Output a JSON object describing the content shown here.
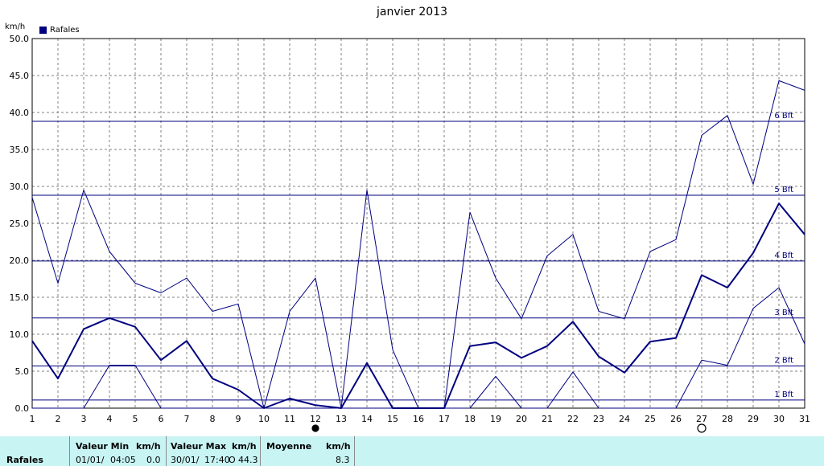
{
  "chart_data": {
    "type": "line",
    "title": "janvier 2013",
    "ylabel": "km/h",
    "ylim": [
      0,
      50
    ],
    "yticks": [
      "0.0",
      "5.0",
      "10.0",
      "15.0",
      "20.0",
      "25.0",
      "30.0",
      "35.0",
      "40.0",
      "45.0",
      "50.0"
    ],
    "x": [
      1,
      2,
      3,
      4,
      5,
      6,
      7,
      8,
      9,
      10,
      11,
      12,
      13,
      14,
      15,
      16,
      17,
      18,
      19,
      20,
      21,
      22,
      23,
      24,
      25,
      26,
      27,
      28,
      29,
      30,
      31
    ],
    "legend": [
      "Rafales"
    ],
    "grid": true,
    "series": [
      {
        "name": "Rafales",
        "role": "max",
        "values": [
          28.5,
          16.9,
          29.5,
          21.2,
          16.9,
          15.6,
          17.6,
          13.1,
          14.1,
          0.0,
          13.1,
          17.6,
          0.0,
          29.5,
          7.9,
          0.0,
          0.0,
          26.5,
          17.6,
          12.1,
          20.6,
          23.5,
          13.1,
          12.1,
          21.2,
          22.8,
          36.9,
          39.6,
          30.3,
          44.3,
          43.0
        ]
      },
      {
        "name": "Rafales",
        "role": "mean",
        "values": [
          9.1,
          4.0,
          10.7,
          12.2,
          11.0,
          6.5,
          9.1,
          4.0,
          2.5,
          0.0,
          1.3,
          0.4,
          0.0,
          6.1,
          0.0,
          0.0,
          0.0,
          8.4,
          8.9,
          6.8,
          8.4,
          11.7,
          7.0,
          4.8,
          9.0,
          9.5,
          18.0,
          16.3,
          21.0,
          27.7,
          23.5
        ]
      },
      {
        "name": "Rafales",
        "role": "min",
        "values": [
          0.0,
          0.0,
          0.0,
          5.8,
          5.8,
          0.0,
          0.0,
          0.0,
          0.0,
          0.0,
          0.0,
          0.0,
          0.0,
          0.0,
          0.0,
          0.0,
          0.0,
          0.0,
          4.3,
          0.0,
          0.0,
          4.9,
          0.0,
          0.0,
          0.0,
          0.0,
          6.5,
          5.8,
          13.5,
          16.3,
          8.7
        ]
      }
    ],
    "reference_lines": [
      {
        "label": "1 Bft",
        "value": 1.1
      },
      {
        "label": "2 Bft",
        "value": 5.7
      },
      {
        "label": "3 Bft",
        "value": 12.2
      },
      {
        "label": "4 Bft",
        "value": 19.9
      },
      {
        "label": "5 Bft",
        "value": 28.8
      },
      {
        "label": "6 Bft",
        "value": 38.8
      }
    ],
    "moon_markers": [
      {
        "day": 12,
        "phase": "new-moon"
      },
      {
        "day": 27,
        "phase": "full-moon"
      }
    ],
    "colors": {
      "line": "#000080",
      "grid": "#808080"
    }
  },
  "stats": {
    "row_label": "Rafales",
    "min_header": "Valeur Min",
    "min_unit": "km/h",
    "min_date": "01/01/",
    "min_time": "04:05",
    "min_value": "0.0",
    "max_header": "Valeur Max",
    "max_unit": "km/h",
    "max_date": "30/01/",
    "max_time": "17:40",
    "max_dir": "O",
    "max_value": "44.3",
    "avg_header": "Moyenne",
    "avg_unit": "km/h",
    "avg_value": "8.3"
  }
}
